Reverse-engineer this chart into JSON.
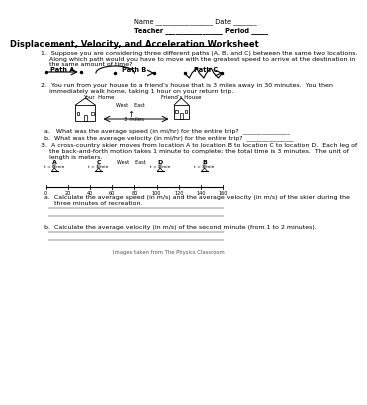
{
  "title": "Displacement, Velocity, and Acceleration Worksheet",
  "name_line": "Name _________________ Date _______",
  "teacher_line": "Teacher _________________ Period _____",
  "q1_line1": "1.  Suppose you are considering three different paths (A, B, and C) between the same two locations.",
  "q1_line2": "    Along which path would you have to move with the greatest speed to arrive at the destination in",
  "q1_line3": "    the same amount of time?",
  "path_labels": [
    "Path A",
    "Path B",
    "Path C"
  ],
  "q2_line1": "2.  You run from your house to a friend’s house that is 3 miles away in 30 minutes.  You then",
  "q2_line2": "    immediately walk home, taking 1 hour on your return trip.",
  "your_home": "Your  Home",
  "friends_house": "Friend’s House",
  "compass": "West    East",
  "miles_label": "3 miles",
  "q2a": "a.   What was the average speed (in mi/hr) for the entire trip?  _______________",
  "q2b": "b.  What was the average velocity (in mi/hr) for the entire trip?  _______________",
  "q3_line1": "3.  A cross-country skier moves from location A to location B to location C to location D.  Each leg of",
  "q3_line2": "    the back-and-forth motion takes 1 minute to complete; the total time is 3 minutes.  The unit of",
  "q3_line3": "    length is meters.",
  "loc_labels": [
    "A",
    "C",
    "D",
    "B"
  ],
  "skier_labels": [
    "t = 0 min",
    "t = 1 min",
    "t = 2 min",
    "t = 3 min"
  ],
  "tick_vals": [
    0,
    20,
    40,
    60,
    80,
    100,
    120,
    140,
    160
  ],
  "q3a_line1": "a.  Calculate the average speed (in m/s) and the average velocity (in m/s) of the skier during the",
  "q3a_line2": "     three minutes of recreation.",
  "q3b": "b.  Calculate the average velocity (in m/s) of the second minute (from 1 to 2 minutes).",
  "footer": "Images taken from The Physics Classroom",
  "bg_color": "#ffffff",
  "text_color": "#000000"
}
